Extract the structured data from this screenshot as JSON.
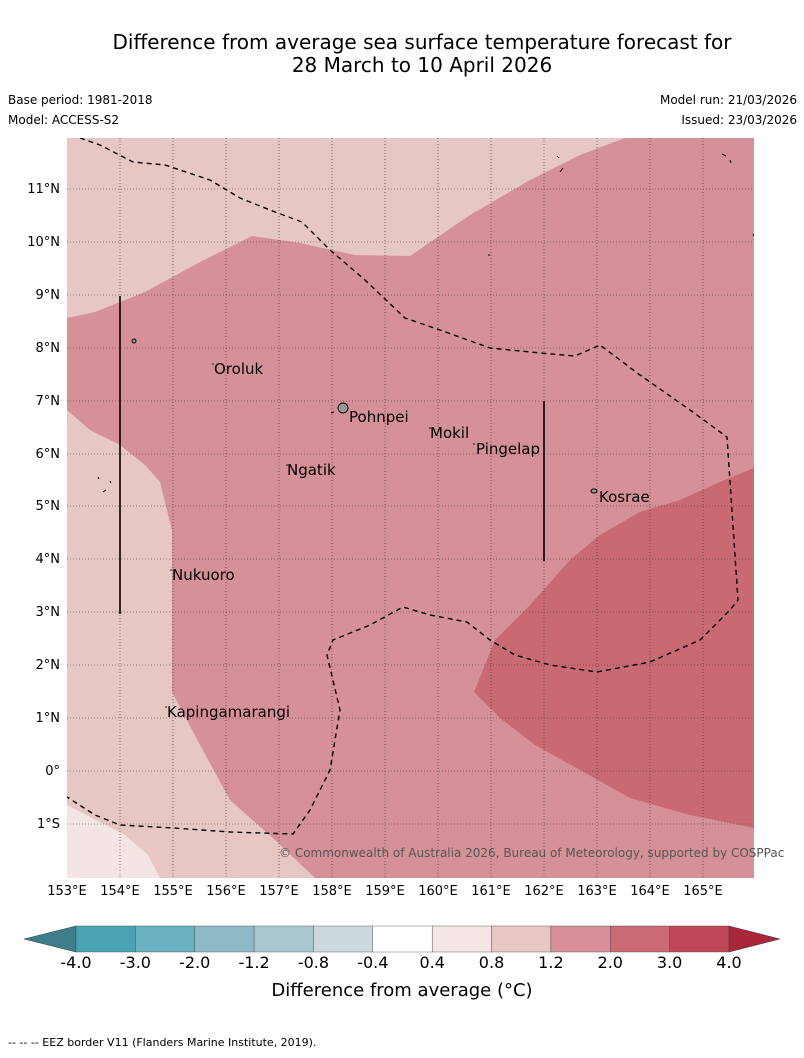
{
  "header": {
    "title_line1": "Difference from average sea surface temperature forecast for",
    "title_line2": "28 March to 10 April 2026",
    "base_period": "Base period: 1981-2018",
    "model": "Model: ACCESS-S2",
    "model_run": "Model run: 21/03/2026",
    "issued": "Issued: 23/03/2026"
  },
  "map": {
    "lat_labels": [
      "11°N",
      "10°N",
      "9°N",
      "8°N",
      "7°N",
      "6°N",
      "5°N",
      "4°N",
      "3°N",
      "2°N",
      "1°N",
      "0°",
      "1°S"
    ],
    "lon_labels": [
      "153°E",
      "154°E",
      "155°E",
      "156°E",
      "157°E",
      "158°E",
      "159°E",
      "160°E",
      "161°E",
      "162°E",
      "163°E",
      "164°E",
      "165°E"
    ],
    "places": {
      "oroluk": "Oroluk",
      "pohnpei": "Pohnpei",
      "mokil": "Mokil",
      "pingelap": "Pingelap",
      "ngatik": "Ngatik",
      "kosrae": "Kosrae",
      "nukuoro": "Nukuoro",
      "kapingamarangi": "Kapingamarangi"
    },
    "copyright": "© Commonwealth of Australia 2026, Bureau of Meteorology, supported by COSPPac",
    "colors": {
      "band_0_4_0_8": "#f3e5e3",
      "band_0_8_1_2": "#e7c7c3",
      "band_1_2_2_0": "#d69098",
      "band_2_0_3_0": "#c96a73"
    }
  },
  "colorbar": {
    "tick_labels": [
      "-4.0",
      "-3.0",
      "-2.0",
      "-1.2",
      "-0.8",
      "-0.4",
      "0.4",
      "0.8",
      "1.2",
      "2.0",
      "3.0",
      "4.0"
    ],
    "colors": [
      "#3e7d8a",
      "#4aa3b3",
      "#6ab2c1",
      "#8dbac6",
      "#a9c8cd",
      "#cbdadd",
      "#ffffff",
      "#f4e6e4",
      "#e8c6c2",
      "#d88f99",
      "#c96a74",
      "#be4656",
      "#a8253a"
    ],
    "title": "Difference from average (°C)"
  },
  "footnote": "--  --  -- EEZ border V11 (Flanders Marine Institute, 2019)."
}
